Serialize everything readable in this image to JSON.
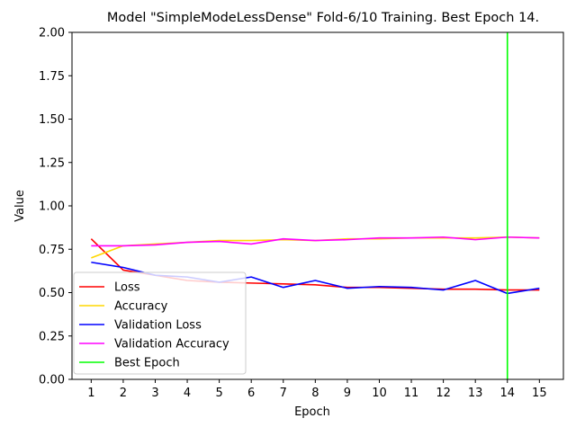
{
  "chart_data": {
    "type": "line",
    "title": "Model \"SimpleModeLessDense\" Fold-6/10 Training. Best Epoch 14.",
    "xlabel": "Epoch",
    "ylabel": "Value",
    "x": [
      1,
      2,
      3,
      4,
      5,
      6,
      7,
      8,
      9,
      10,
      11,
      12,
      13,
      14,
      15
    ],
    "xlim": [
      0.4,
      15.75
    ],
    "ylim": [
      0,
      2
    ],
    "yticks": [
      0.0,
      0.25,
      0.5,
      0.75,
      1.0,
      1.25,
      1.5,
      1.75,
      2.0
    ],
    "ytick_labels": [
      "0.00",
      "0.25",
      "0.50",
      "0.75",
      "1.00",
      "1.25",
      "1.50",
      "1.75",
      "2.00"
    ],
    "xtick_labels": [
      "1",
      "2",
      "3",
      "4",
      "5",
      "6",
      "7",
      "8",
      "9",
      "10",
      "11",
      "12",
      "13",
      "14",
      "15"
    ],
    "grid": false,
    "legend_position": "lower-left",
    "series": [
      {
        "name": "Loss",
        "color": "#ff0000",
        "values": [
          0.81,
          0.63,
          0.6,
          0.57,
          0.56,
          0.555,
          0.55,
          0.545,
          0.53,
          0.53,
          0.525,
          0.52,
          0.52,
          0.515,
          0.515
        ]
      },
      {
        "name": "Accuracy",
        "color": "#ffd700",
        "values": [
          0.7,
          0.77,
          0.78,
          0.79,
          0.8,
          0.8,
          0.805,
          0.8,
          0.81,
          0.81,
          0.815,
          0.815,
          0.815,
          0.82,
          0.815
        ]
      },
      {
        "name": "Validation Loss",
        "color": "#0000ff",
        "values": [
          0.675,
          0.645,
          0.6,
          0.59,
          0.56,
          0.59,
          0.53,
          0.57,
          0.525,
          0.535,
          0.53,
          0.515,
          0.57,
          0.495,
          0.525
        ]
      },
      {
        "name": "Validation  Accuracy",
        "color": "#ff00ff",
        "values": [
          0.77,
          0.77,
          0.775,
          0.79,
          0.795,
          0.78,
          0.81,
          0.8,
          0.805,
          0.815,
          0.815,
          0.82,
          0.805,
          0.82,
          0.815
        ]
      }
    ],
    "best_epoch": {
      "name": "Best Epoch",
      "x": 14,
      "color": "#00ff00"
    }
  }
}
